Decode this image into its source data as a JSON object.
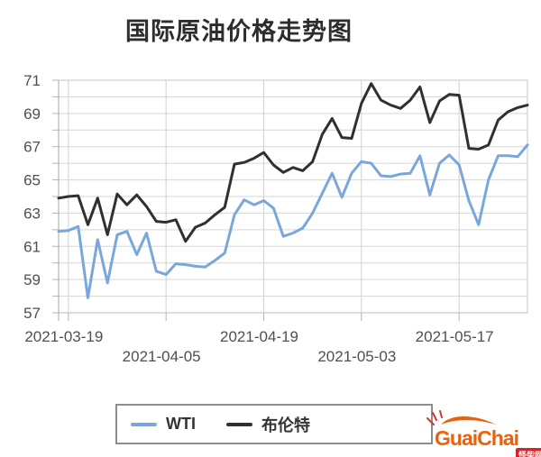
{
  "title": "国际原油价格走势图",
  "legend": {
    "items": [
      {
        "label": "WTI",
        "color": "#79a7db"
      },
      {
        "label": "布伦特",
        "color": "#303030"
      }
    ]
  },
  "logo": {
    "brand": "GuaiChai",
    "badge": "怪柴网"
  },
  "colors": {
    "wti_line": "#79a7db",
    "brent_line": "#303030",
    "grid": "#d6d6d6",
    "axis_text": "#4f4f4f",
    "bottom_axis": "#aebfd8",
    "logo_orange": "#e8620e",
    "logo_red": "#d5252b"
  },
  "chart_data": {
    "type": "line",
    "title": "国际原油价格走势图",
    "xlabel": "",
    "ylabel": "",
    "ylim": [
      57,
      71
    ],
    "grid": true,
    "legend_position": "bottom",
    "y_ticks": [
      57,
      59,
      61,
      63,
      65,
      67,
      69,
      71
    ],
    "n_points": 49,
    "x_tick_labels": [
      {
        "index": 1,
        "label": "2021-03-19",
        "row": 0
      },
      {
        "index": 11,
        "label": "2021-04-05",
        "row": 1
      },
      {
        "index": 21,
        "label": "2021-04-19",
        "row": 0
      },
      {
        "index": 31,
        "label": "2021-05-03",
        "row": 1
      },
      {
        "index": 41,
        "label": "2021-05-17",
        "row": 0
      }
    ],
    "series": [
      {
        "name": "WTI",
        "color": "#79a7db",
        "values": [
          61.9,
          61.95,
          62.2,
          57.9,
          61.4,
          58.8,
          61.7,
          61.9,
          60.5,
          61.8,
          59.5,
          59.3,
          59.95,
          59.9,
          59.8,
          59.75,
          60.15,
          60.6,
          62.9,
          63.8,
          63.5,
          63.75,
          63.3,
          61.6,
          61.8,
          62.1,
          63.0,
          64.2,
          65.4,
          63.95,
          65.4,
          66.1,
          66.0,
          65.25,
          65.2,
          65.35,
          65.4,
          66.45,
          64.1,
          66.0,
          66.5,
          65.9,
          63.75,
          62.3,
          65.0,
          66.45,
          66.45,
          66.4,
          67.1
        ]
      },
      {
        "name": "布伦特",
        "color": "#303030",
        "values": [
          63.9,
          64.0,
          64.05,
          62.3,
          63.9,
          61.7,
          64.15,
          63.5,
          64.1,
          63.4,
          62.5,
          62.45,
          62.6,
          61.3,
          62.15,
          62.4,
          62.9,
          63.35,
          65.95,
          66.05,
          66.3,
          66.65,
          65.9,
          65.45,
          65.75,
          65.55,
          66.1,
          67.75,
          68.7,
          67.55,
          67.5,
          69.6,
          70.8,
          69.8,
          69.5,
          69.3,
          69.8,
          70.6,
          68.45,
          69.75,
          70.15,
          70.1,
          66.9,
          66.85,
          67.1,
          68.6,
          69.1,
          69.35,
          69.5
        ]
      }
    ]
  }
}
